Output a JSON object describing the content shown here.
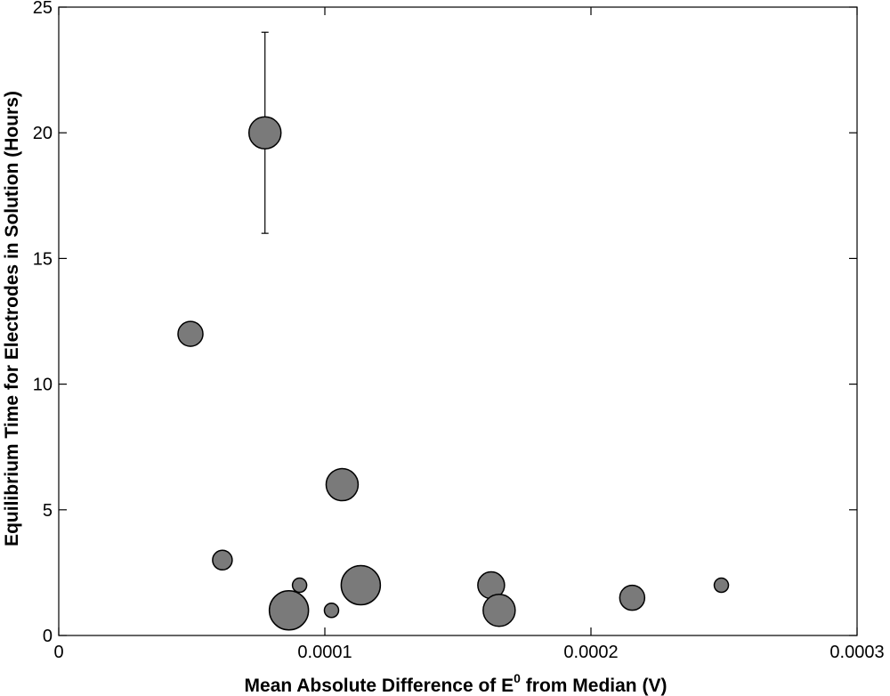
{
  "chart_data": {
    "type": "scatter",
    "title": "",
    "xlabel": {
      "prefix": "Mean Absolute Difference of E",
      "sup": "0",
      "suffix": " from Median (V)"
    },
    "ylabel": "Equilibrium Time for Electrodes in Solution (Hours)",
    "xlim": [
      0,
      0.0003
    ],
    "ylim": [
      0,
      25
    ],
    "xticks": [
      0,
      0.0001,
      0.0002,
      0.0003
    ],
    "xtick_labels": [
      "0",
      "0.0001",
      "0.0002",
      "0.0003"
    ],
    "yticks": [
      0,
      5,
      10,
      15,
      20,
      25
    ],
    "ytick_labels": [
      "0",
      "5",
      "10",
      "15",
      "20",
      "25"
    ],
    "grid": false,
    "marker_color": "#7a7a7a",
    "points": [
      {
        "x": 4.95e-05,
        "y": 12,
        "size": 0.7
      },
      {
        "x": 6.15e-05,
        "y": 3,
        "size": 0.55
      },
      {
        "x": 7.75e-05,
        "y": 20,
        "size": 0.9,
        "yerr": [
          16,
          24
        ]
      },
      {
        "x": 8.65e-05,
        "y": 1,
        "size": 1.1
      },
      {
        "x": 9.05e-05,
        "y": 2,
        "size": 0.4
      },
      {
        "x": 0.0001025,
        "y": 1,
        "size": 0.4
      },
      {
        "x": 0.0001065,
        "y": 6,
        "size": 0.9
      },
      {
        "x": 0.0001135,
        "y": 2,
        "size": 1.1
      },
      {
        "x": 0.0001625,
        "y": 2,
        "size": 0.75
      },
      {
        "x": 0.0001655,
        "y": 1,
        "size": 0.9
      },
      {
        "x": 0.0002155,
        "y": 1.5,
        "size": 0.7
      },
      {
        "x": 0.000249,
        "y": 2,
        "size": 0.4
      }
    ]
  }
}
